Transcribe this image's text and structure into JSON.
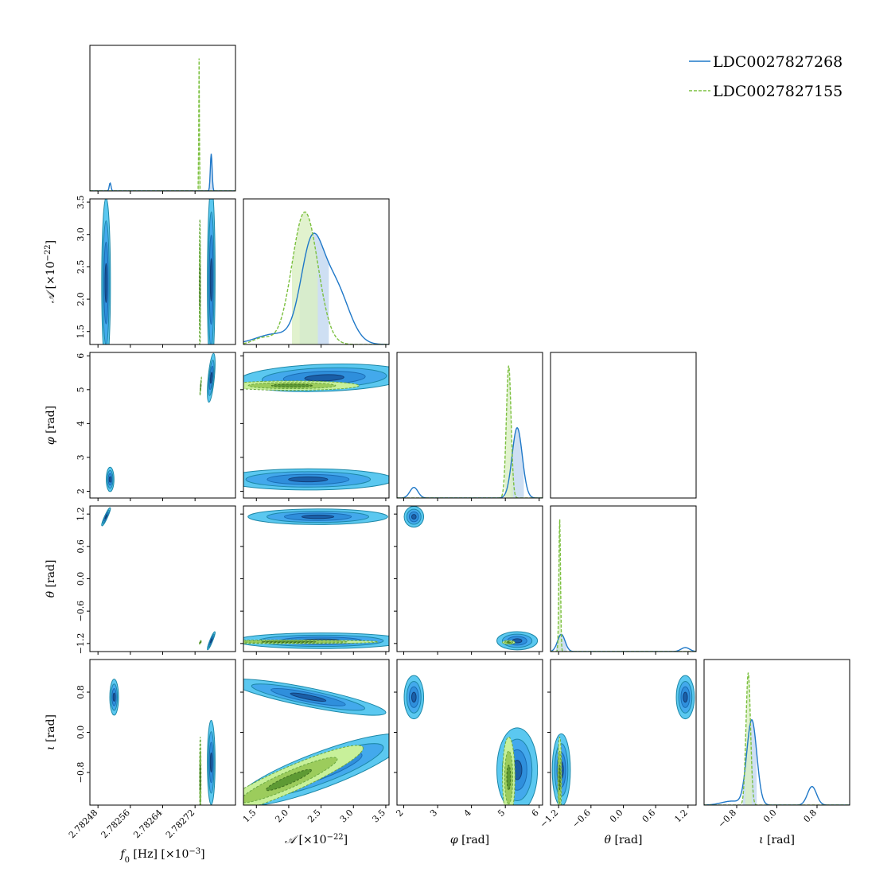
{
  "chart_data": {
    "type": "corner",
    "colors": {
      "blue_line": "#1f78c8",
      "blue_fill": "#c6d9f1",
      "green_line": "#7cc040",
      "green_fill": "#d9efc2",
      "contour_light": "#5bc8f0",
      "contour_mid": "#2f8fdc",
      "contour_dark": "#1a5fa8",
      "contour_edge": "#1d88a8",
      "green_dark": "#6aa842",
      "green_light": "#c8f09a"
    },
    "legend": {
      "position": "top-right",
      "entries": [
        {
          "label": "LDC0027827268",
          "style": "solid",
          "color": "#1f78c8"
        },
        {
          "label": "LDC0027827155",
          "style": "dashed",
          "color": "#7cc040"
        }
      ]
    },
    "parameters": [
      {
        "key": "f0",
        "label": "f",
        "sub": "0",
        "unit": " [Hz] [×10",
        "sup": "−3",
        "close": "]",
        "range": [
          2.78246,
          2.78282
        ],
        "ticks": [
          2.78248,
          2.78256,
          2.78264,
          2.78272
        ],
        "tick_labels": [
          "2.78248",
          "2.78256",
          "2.78264",
          "2.78272"
        ]
      },
      {
        "key": "A",
        "label": "𝒜",
        "sub": "",
        "unit": " [×10",
        "sup": "−22",
        "close": "]",
        "range": [
          1.3,
          3.55
        ],
        "ticks": [
          1.5,
          2.0,
          2.5,
          3.0,
          3.5
        ],
        "tick_labels": [
          "1.5",
          "2.0",
          "2.5",
          "3.0",
          "3.5"
        ]
      },
      {
        "key": "phi",
        "label": "φ",
        "sub": "",
        "unit": " [rad]",
        "sup": "",
        "close": "",
        "range": [
          1.8,
          6.1
        ],
        "ticks": [
          2,
          3,
          4,
          5,
          6
        ],
        "tick_labels": [
          "2",
          "3",
          "4",
          "5",
          "6"
        ]
      },
      {
        "key": "theta",
        "label": "θ",
        "sub": "",
        "unit": " [rad]",
        "sup": "",
        "close": "",
        "range": [
          -1.35,
          1.35
        ],
        "ticks": [
          -1.2,
          -0.6,
          0.0,
          0.6,
          1.2
        ],
        "tick_labels": [
          "−1.2",
          "−0.6",
          "0.0",
          "0.6",
          "1.2"
        ]
      },
      {
        "key": "iota",
        "label": "ι",
        "sub": "",
        "unit": " [rad]",
        "sup": "",
        "close": "",
        "range": [
          -1.45,
          1.45
        ],
        "ticks": [
          -0.8,
          0.0,
          0.8
        ],
        "tick_labels": [
          "−0.8",
          "0.0",
          "0.8"
        ]
      }
    ],
    "marginals": [
      {
        "param": "f0",
        "blue": [
          {
            "mu": 2.78251,
            "sigma": 2.2e-06,
            "w": 0.06
          },
          {
            "mu": 2.78276,
            "sigma": 2.2e-06,
            "w": 0.28
          }
        ],
        "green": [
          {
            "mu": 2.78273,
            "sigma": 8e-07,
            "w": 1.0
          }
        ],
        "blue_band": [
          2.78271,
          2.78279
        ],
        "green_band": [
          2.782722,
          2.782742
        ]
      },
      {
        "param": "A",
        "blue": [
          {
            "mu": 1.8,
            "sigma": 0.3,
            "w": 0.08
          },
          {
            "mu": 2.35,
            "sigma": 0.17,
            "w": 0.68
          },
          {
            "mu": 2.7,
            "sigma": 0.22,
            "w": 0.45
          }
        ],
        "green": [
          {
            "mu": 1.6,
            "sigma": 0.15,
            "w": 0.05
          },
          {
            "mu": 2.25,
            "sigma": 0.2,
            "w": 1.0
          }
        ],
        "blue_band": [
          2.17,
          2.62
        ],
        "green_band": [
          2.05,
          2.45
        ]
      },
      {
        "param": "phi",
        "blue": [
          {
            "mu": 2.3,
            "sigma": 0.12,
            "w": 0.08
          },
          {
            "mu": 5.35,
            "sigma": 0.15,
            "w": 0.53
          }
        ],
        "green": [
          {
            "mu": 5.1,
            "sigma": 0.07,
            "w": 1.0
          }
        ],
        "blue_band": [
          5.15,
          5.55
        ],
        "green_band": [
          4.98,
          5.23
        ]
      },
      {
        "param": "theta",
        "blue": [
          {
            "mu": -1.15,
            "sigma": 0.07,
            "w": 0.13
          },
          {
            "mu": 1.15,
            "sigma": 0.08,
            "w": 0.03
          }
        ],
        "green": [
          {
            "mu": -1.18,
            "sigma": 0.015,
            "w": 1.0
          }
        ],
        "blue_band": [
          -1.25,
          -1.05
        ],
        "green_band": [
          -1.2,
          -1.16
        ]
      },
      {
        "param": "iota",
        "blue": [
          {
            "mu": -0.5,
            "sigma": 0.1,
            "w": 0.64
          },
          {
            "mu": 0.7,
            "sigma": 0.09,
            "w": 0.14
          },
          {
            "mu": -0.9,
            "sigma": 0.2,
            "w": 0.03
          }
        ],
        "green": [
          {
            "mu": -0.57,
            "sigma": 0.045,
            "w": 1.0
          }
        ],
        "blue_band": [
          -0.68,
          -0.4
        ],
        "green_band": [
          -0.63,
          -0.5
        ]
      }
    ],
    "joints": [
      {
        "row": "A",
        "col": "f0",
        "blue": [
          {
            "x": 2.7825,
            "y": 2.25,
            "sx": 4.5e-06,
            "sy": 0.55,
            "rho": 0
          },
          {
            "x": 2.78276,
            "y": 2.3,
            "sx": 4e-06,
            "sy": 0.6,
            "rho": 0.05
          }
        ],
        "green": [
          {
            "x": 2.782732,
            "y": 2.2,
            "sx": 7e-07,
            "sy": 0.45,
            "rho": 0
          }
        ]
      },
      {
        "row": "phi",
        "col": "f0",
        "blue": [
          {
            "x": 2.78276,
            "y": 5.35,
            "sx": 4e-06,
            "sy": 0.3,
            "rho": 0.6
          },
          {
            "x": 2.78251,
            "y": 2.35,
            "sx": 4e-06,
            "sy": 0.15,
            "rho": 0
          }
        ],
        "green": [
          {
            "x": 2.782734,
            "y": 5.1,
            "sx": 9e-07,
            "sy": 0.12,
            "rho": 0.9
          }
        ]
      },
      {
        "row": "phi",
        "col": "A",
        "blue": [
          {
            "x": 2.55,
            "y": 5.35,
            "sx": 0.55,
            "sy": 0.17,
            "rho": 0.2
          },
          {
            "x": 2.3,
            "y": 2.35,
            "sx": 0.55,
            "sy": 0.13,
            "rho": 0
          }
        ],
        "green": [
          {
            "x": 2.05,
            "y": 5.12,
            "sx": 0.45,
            "sy": 0.06,
            "rho": 0
          }
        ]
      },
      {
        "row": "phi",
        "col": "theta",
        "blue": [],
        "green": []
      },
      {
        "row": "theta",
        "col": "f0",
        "blue": [
          {
            "x": 2.7825,
            "y": 1.15,
            "sx": 4.5e-06,
            "sy": 0.07,
            "rho": 0.92
          },
          {
            "x": 2.78276,
            "y": -1.15,
            "sx": 4e-06,
            "sy": 0.07,
            "rho": 0.92
          }
        ],
        "green": [
          {
            "x": 2.782733,
            "y": -1.18,
            "sx": 1e-06,
            "sy": 0.015,
            "rho": 0.5
          }
        ]
      },
      {
        "row": "theta",
        "col": "A",
        "blue": [
          {
            "x": 2.45,
            "y": 1.15,
            "sx": 0.45,
            "sy": 0.06,
            "rho": 0
          },
          {
            "x": 2.5,
            "y": -1.15,
            "sx": 0.55,
            "sy": 0.06,
            "rho": 0
          }
        ],
        "green": [
          {
            "x": 2.0,
            "y": -1.17,
            "sx": 0.6,
            "sy": 0.015,
            "rho": 0
          }
        ]
      },
      {
        "row": "theta",
        "col": "phi",
        "blue": [
          {
            "x": 2.3,
            "y": 1.15,
            "sx": 0.12,
            "sy": 0.08,
            "rho": 0
          },
          {
            "x": 5.35,
            "y": -1.15,
            "sx": 0.25,
            "sy": 0.07,
            "rho": 0
          }
        ],
        "green": [
          {
            "x": 5.1,
            "y": -1.18,
            "sx": 0.08,
            "sy": 0.015,
            "rho": 0
          }
        ]
      },
      {
        "row": "iota",
        "col": "f0",
        "blue": [
          {
            "x": 2.78252,
            "y": 0.7,
            "sx": 4.5e-06,
            "sy": 0.15,
            "rho": 0
          },
          {
            "x": 2.78276,
            "y": -0.6,
            "sx": 4e-06,
            "sy": 0.35,
            "rho": 0
          }
        ],
        "green": [
          {
            "x": 2.782733,
            "y": -0.9,
            "sx": 8e-07,
            "sy": 0.35,
            "rho": 0
          }
        ]
      },
      {
        "row": "iota",
        "col": "A",
        "blue": [
          {
            "x": 2.3,
            "y": 0.7,
            "sx": 0.5,
            "sy": 0.15,
            "rho": -0.85
          },
          {
            "x": 2.5,
            "y": -0.75,
            "sx": 0.55,
            "sy": 0.3,
            "rho": 0.85
          }
        ],
        "green": [
          {
            "x": 2.0,
            "y": -0.95,
            "sx": 0.5,
            "sy": 0.3,
            "rho": 0.92
          }
        ]
      },
      {
        "row": "iota",
        "col": "phi",
        "blue": [
          {
            "x": 2.3,
            "y": 0.7,
            "sx": 0.12,
            "sy": 0.18,
            "rho": 0
          },
          {
            "x": 5.35,
            "y": -0.75,
            "sx": 0.25,
            "sy": 0.35,
            "rho": 0
          }
        ],
        "green": [
          {
            "x": 5.1,
            "y": -0.9,
            "sx": 0.08,
            "sy": 0.35,
            "rho": 0
          }
        ]
      },
      {
        "row": "iota",
        "col": "theta",
        "blue": [
          {
            "x": 1.15,
            "y": 0.7,
            "sx": 0.07,
            "sy": 0.18,
            "rho": 0
          },
          {
            "x": -1.15,
            "y": -0.75,
            "sx": 0.07,
            "sy": 0.3,
            "rho": 0
          }
        ],
        "green": [
          {
            "x": -1.18,
            "y": -0.9,
            "sx": 0.015,
            "sy": 0.35,
            "rho": 0
          }
        ]
      }
    ]
  }
}
